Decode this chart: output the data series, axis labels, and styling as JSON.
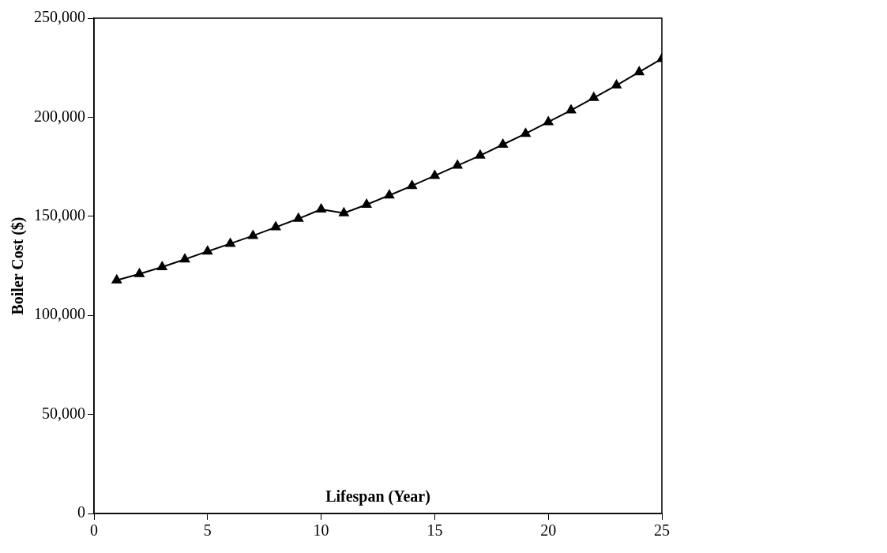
{
  "chart_data": {
    "type": "line",
    "xlabel": "Lifespan (Year)",
    "ylabel": "Boiler Cost ($)",
    "x": [
      1,
      2,
      3,
      4,
      5,
      6,
      7,
      8,
      9,
      10,
      11,
      12,
      13,
      14,
      15,
      16,
      17,
      18,
      19,
      20,
      21,
      22,
      23,
      24,
      25
    ],
    "series": [
      {
        "color": "#000000",
        "values": [
          117700,
          120900,
          124400,
          128300,
          132300,
          136200,
          140200,
          144500,
          148800,
          153500,
          151600,
          155900,
          160600,
          165400,
          170500,
          175600,
          180700,
          186200,
          191700,
          197600,
          203500,
          209800,
          216100,
          222800,
          229500
        ]
      }
    ],
    "xlim": [
      0,
      25
    ],
    "xticks": [
      0,
      5,
      10,
      15,
      20,
      25
    ],
    "ylim": [
      0,
      250000
    ],
    "yticks": [
      {
        "value": 0,
        "label": "0"
      },
      {
        "value": 50000,
        "label": "50,000"
      },
      {
        "value": 100000,
        "label": "100,000"
      },
      {
        "value": 150000,
        "label": "150,000"
      },
      {
        "value": 200000,
        "label": "200,000"
      },
      {
        "value": 250000,
        "label": "250,000"
      }
    ],
    "grid": false,
    "legend": false,
    "marker": "triangle",
    "line_style": "solid"
  }
}
